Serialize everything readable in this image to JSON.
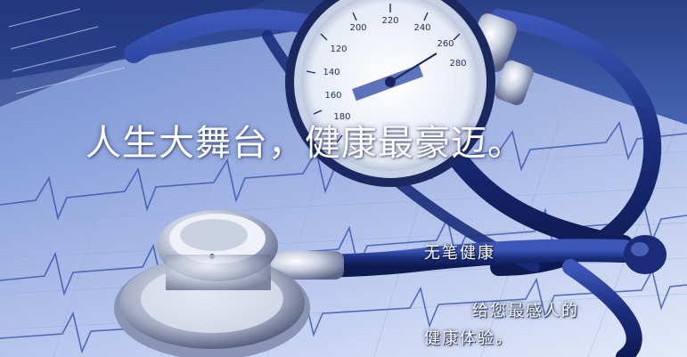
{
  "banner": {
    "headline": "人生大舞台，健康最豪迈。",
    "tagline_line1": "无笔健康",
    "tagline_line2": "给您最感人的",
    "tagline_line3": "健康体验。"
  },
  "gauge": {
    "scale_labels": [
      "120",
      "140",
      "160",
      "180",
      "200",
      "220",
      "240",
      "260",
      "280"
    ]
  },
  "colors": {
    "primary_blue": "#2a3f86",
    "light_blue": "#c9d6f2",
    "text": "#ffffff"
  }
}
